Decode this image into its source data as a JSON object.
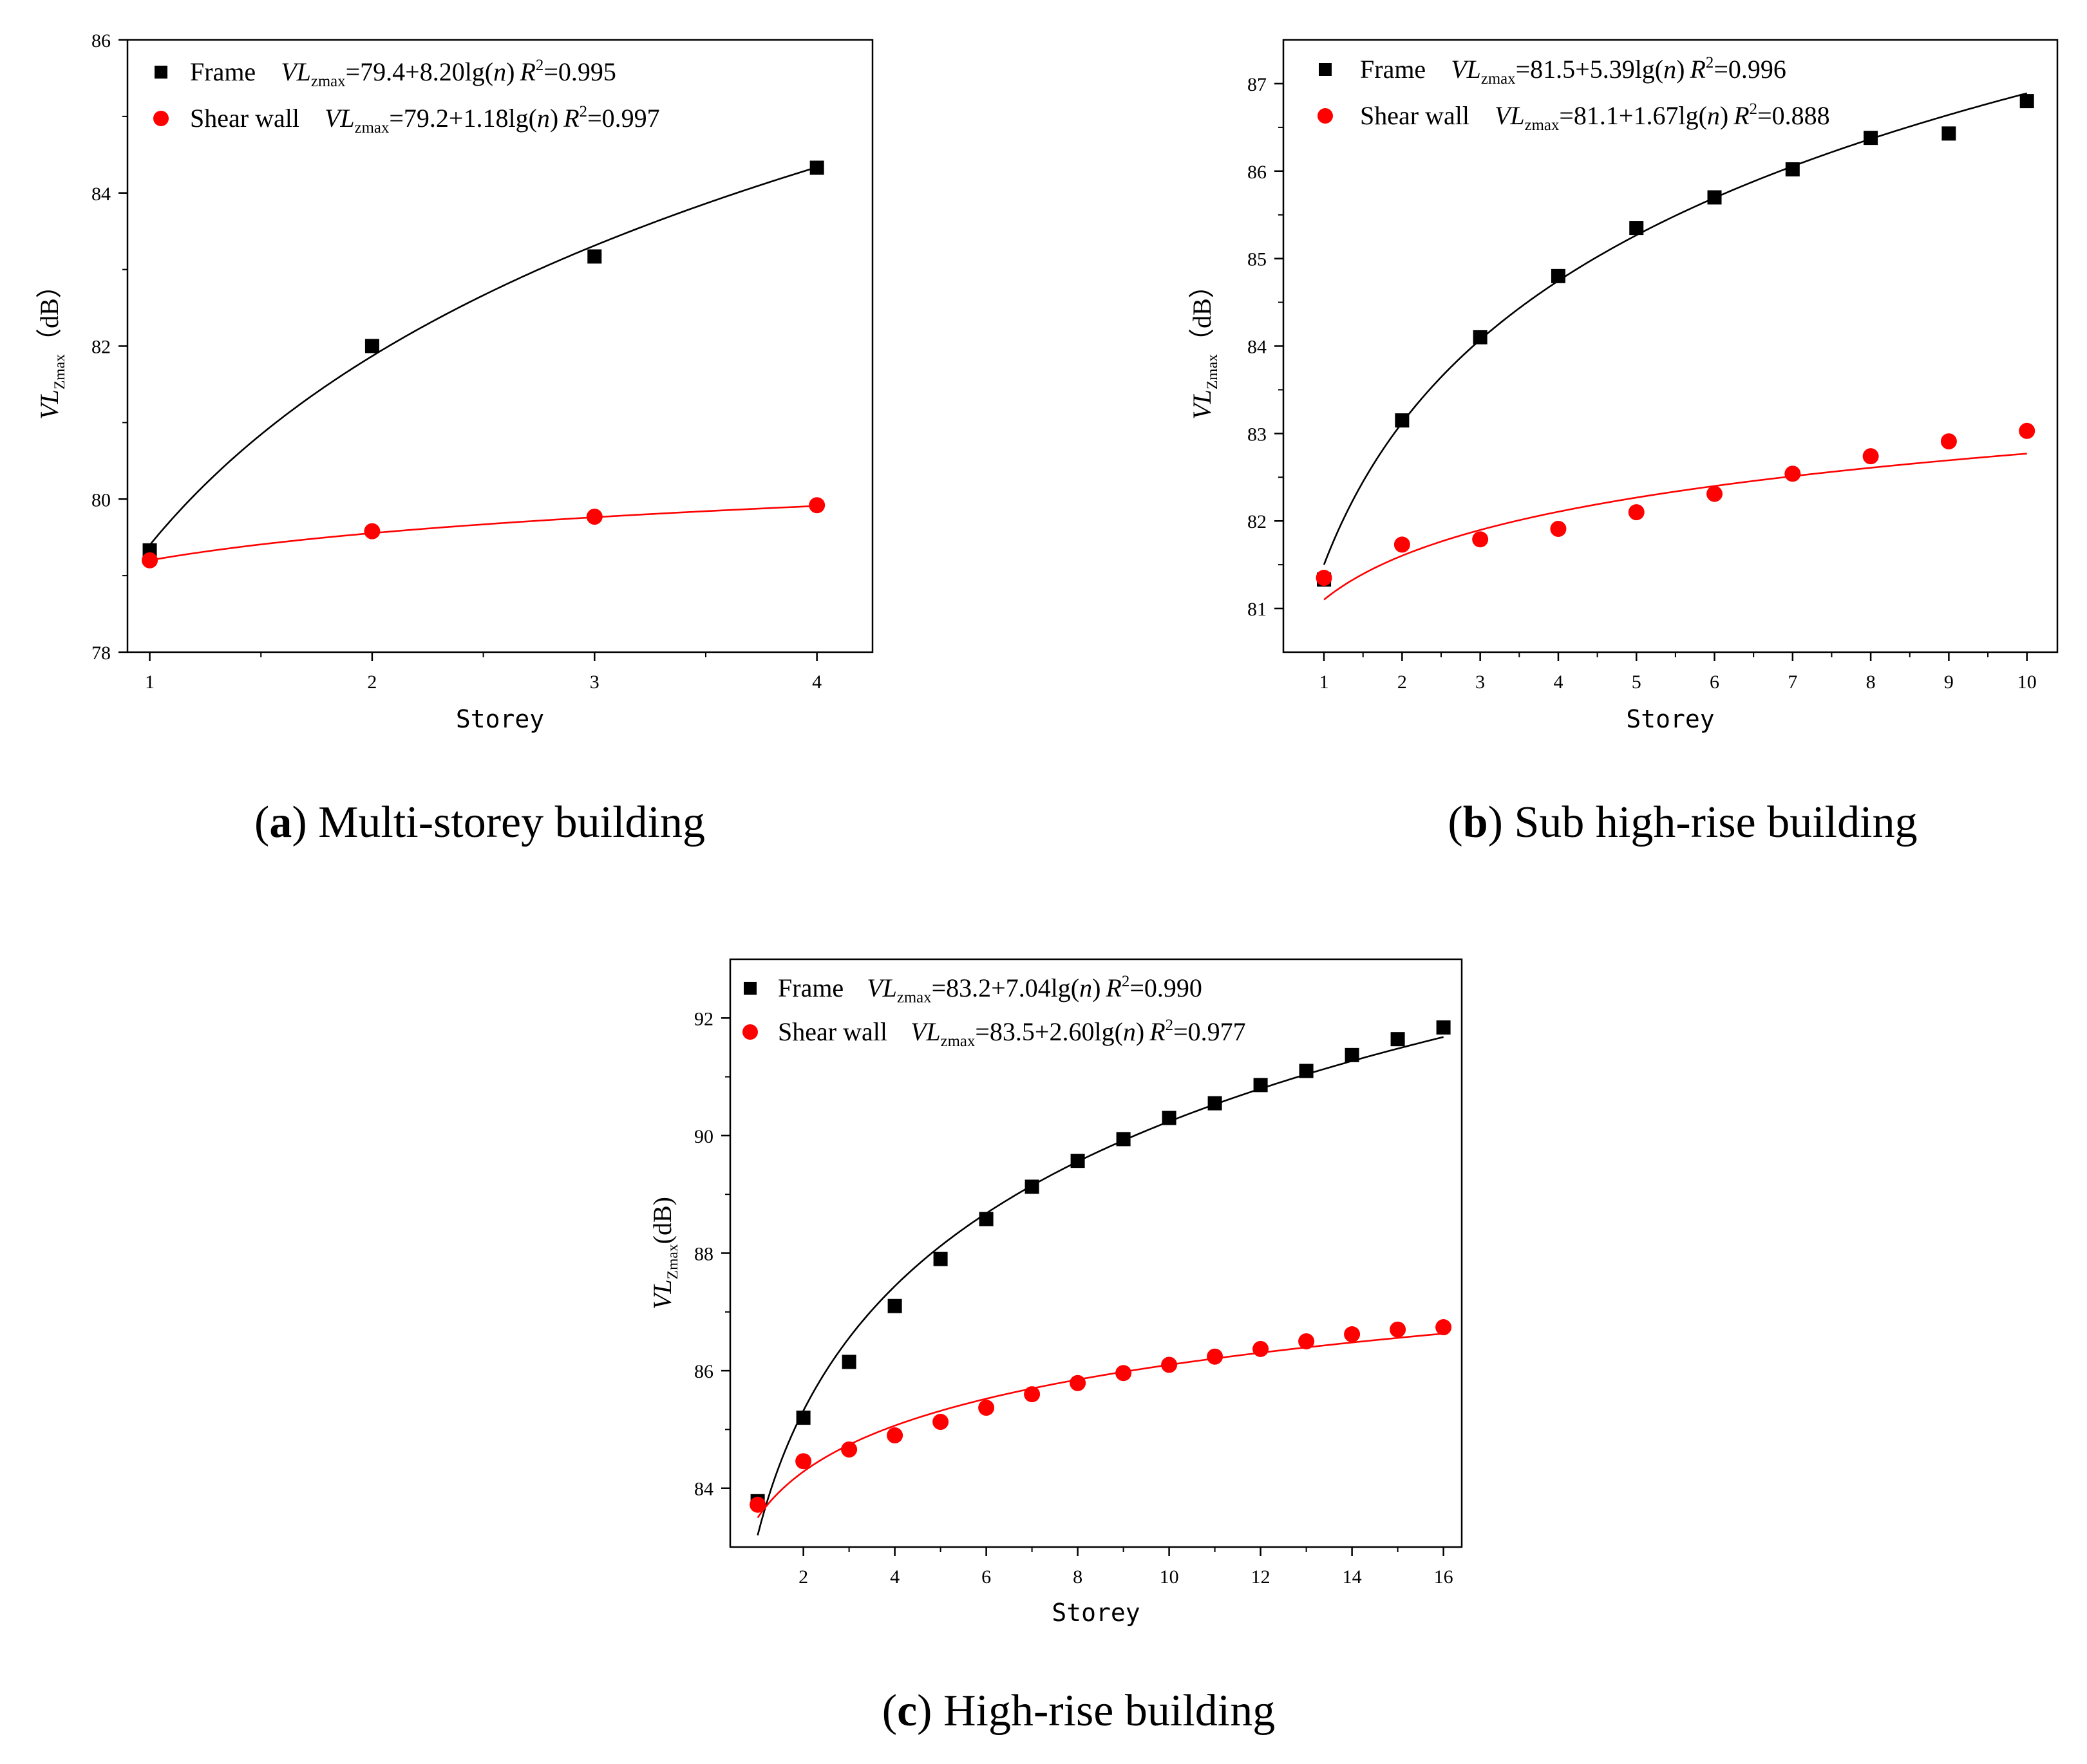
{
  "chart_data": [
    {
      "id": "a",
      "type": "scatter",
      "caption": {
        "letter": "a",
        "text": "Multi-storey building"
      },
      "xlabel": "Storey",
      "ylabel": {
        "main": "VL",
        "sub": "Zmax",
        "unit": "（dB）"
      },
      "xlim": [
        0.9,
        4.25
      ],
      "ylim": [
        78,
        86
      ],
      "xticks": [
        1,
        2,
        3,
        4
      ],
      "yticks": [
        78,
        80,
        82,
        84,
        86
      ],
      "series": [
        {
          "name": "Frame",
          "marker": "square",
          "color": "#000000",
          "x": [
            1,
            2,
            3,
            4
          ],
          "y": [
            79.33,
            82.0,
            83.17,
            84.33
          ],
          "fit": {
            "a": 79.4,
            "b": 8.2
          },
          "legend": {
            "label": "Frame",
            "var": "VL",
            "sub": "zmax",
            "eq": "=79.4+8.20lg(",
            "n": "n",
            "close": ")",
            "r": "R",
            "sup": "2",
            "r2": "=0.995"
          }
        },
        {
          "name": "Shear wall",
          "marker": "circle",
          "color": "#ff0000",
          "x": [
            1,
            2,
            3,
            4
          ],
          "y": [
            79.2,
            79.58,
            79.77,
            79.92
          ],
          "fit": {
            "a": 79.2,
            "b": 1.18
          },
          "legend": {
            "label": "Shear wall",
            "var": "VL",
            "sub": "zmax",
            "eq": "=79.2+1.18lg(",
            "n": "n",
            "close": ")",
            "r": "R",
            "sup": "2",
            "r2": "=0.997"
          }
        }
      ]
    },
    {
      "id": "b",
      "type": "scatter",
      "caption": {
        "letter": "b",
        "text": "Sub high-rise building"
      },
      "xlabel": "Storey",
      "ylabel": {
        "main": "VL",
        "sub": "Zmax",
        "unit": "（dB）"
      },
      "xlim": [
        0.48,
        10.39
      ],
      "ylim": [
        80.5,
        87.5
      ],
      "xticks": [
        1,
        2,
        3,
        4,
        5,
        6,
        7,
        8,
        9,
        10
      ],
      "yticks": [
        81,
        82,
        83,
        84,
        85,
        86,
        87
      ],
      "series": [
        {
          "name": "Frame",
          "marker": "square",
          "color": "#000000",
          "x": [
            1,
            2,
            3,
            4,
            5,
            6,
            7,
            8,
            9,
            10
          ],
          "y": [
            81.33,
            83.15,
            84.1,
            84.8,
            85.35,
            85.7,
            86.02,
            86.38,
            86.43,
            86.8
          ],
          "fit": {
            "a": 81.5,
            "b": 5.39
          },
          "legend": {
            "label": "Frame",
            "var": "VL",
            "sub": "zmax",
            "eq": "=81.5+5.39lg(",
            "n": "n",
            "close": ")",
            "r": "R",
            "sup": "2",
            "r2": "=0.996"
          }
        },
        {
          "name": "Shear wall",
          "marker": "circle",
          "color": "#ff0000",
          "x": [
            1,
            2,
            3,
            4,
            5,
            6,
            7,
            8,
            9,
            10
          ],
          "y": [
            81.35,
            81.73,
            81.79,
            81.91,
            82.1,
            82.31,
            82.54,
            82.74,
            82.91,
            83.03
          ],
          "fit": {
            "a": 81.1,
            "b": 1.67
          },
          "legend": {
            "label": "Shear wall",
            "var": "VL",
            "sub": "zmax",
            "eq": "=81.1+1.67lg(",
            "n": "n",
            "close": ")",
            "r": "R",
            "sup": "2",
            "r2": "=0.888"
          }
        }
      ]
    },
    {
      "id": "c",
      "type": "scatter",
      "caption": {
        "letter": "c",
        "text": "High-rise building"
      },
      "xlabel": "Storey",
      "ylabel": {
        "main": "VL",
        "sub": "Zmax",
        "unit": "(dB)"
      },
      "xlim": [
        0.4,
        16.4
      ],
      "ylim": [
        83,
        93
      ],
      "xticks": [
        2,
        4,
        6,
        8,
        10,
        12,
        14,
        16
      ],
      "yticks": [
        84,
        86,
        88,
        90,
        92
      ],
      "series": [
        {
          "name": "Frame",
          "marker": "square",
          "color": "#000000",
          "x": [
            1,
            2,
            3,
            4,
            5,
            6,
            7,
            8,
            9,
            10,
            11,
            12,
            13,
            14,
            15,
            16
          ],
          "y": [
            83.78,
            85.2,
            86.15,
            87.1,
            87.9,
            88.58,
            89.13,
            89.57,
            89.94,
            90.3,
            90.55,
            90.86,
            91.1,
            91.37,
            91.64,
            91.84
          ],
          "fit": {
            "a": 83.2,
            "b": 7.04
          },
          "legend": {
            "label": "Frame",
            "var": "VL",
            "sub": "zmax",
            "eq": "=83.2+7.04lg(",
            "n": "n",
            "close": ")",
            "r": "R",
            "sup": "2",
            "r2": "=0.990"
          }
        },
        {
          "name": "Shear wall",
          "marker": "circle",
          "color": "#ff0000",
          "x": [
            1,
            2,
            3,
            4,
            5,
            6,
            7,
            8,
            9,
            10,
            11,
            12,
            13,
            14,
            15,
            16
          ],
          "y": [
            83.72,
            84.46,
            84.66,
            84.9,
            85.13,
            85.37,
            85.6,
            85.79,
            85.96,
            86.1,
            86.24,
            86.37,
            86.5,
            86.62,
            86.7,
            86.74
          ],
          "fit": {
            "a": 83.5,
            "b": 2.6
          },
          "legend": {
            "label": "Shear wall",
            "var": "VL",
            "sub": "zmax",
            "eq": "=83.5+2.60lg(",
            "n": "n",
            "close": ")",
            "r": "R",
            "sup": "2",
            "r2": "=0.977"
          }
        }
      ]
    }
  ]
}
